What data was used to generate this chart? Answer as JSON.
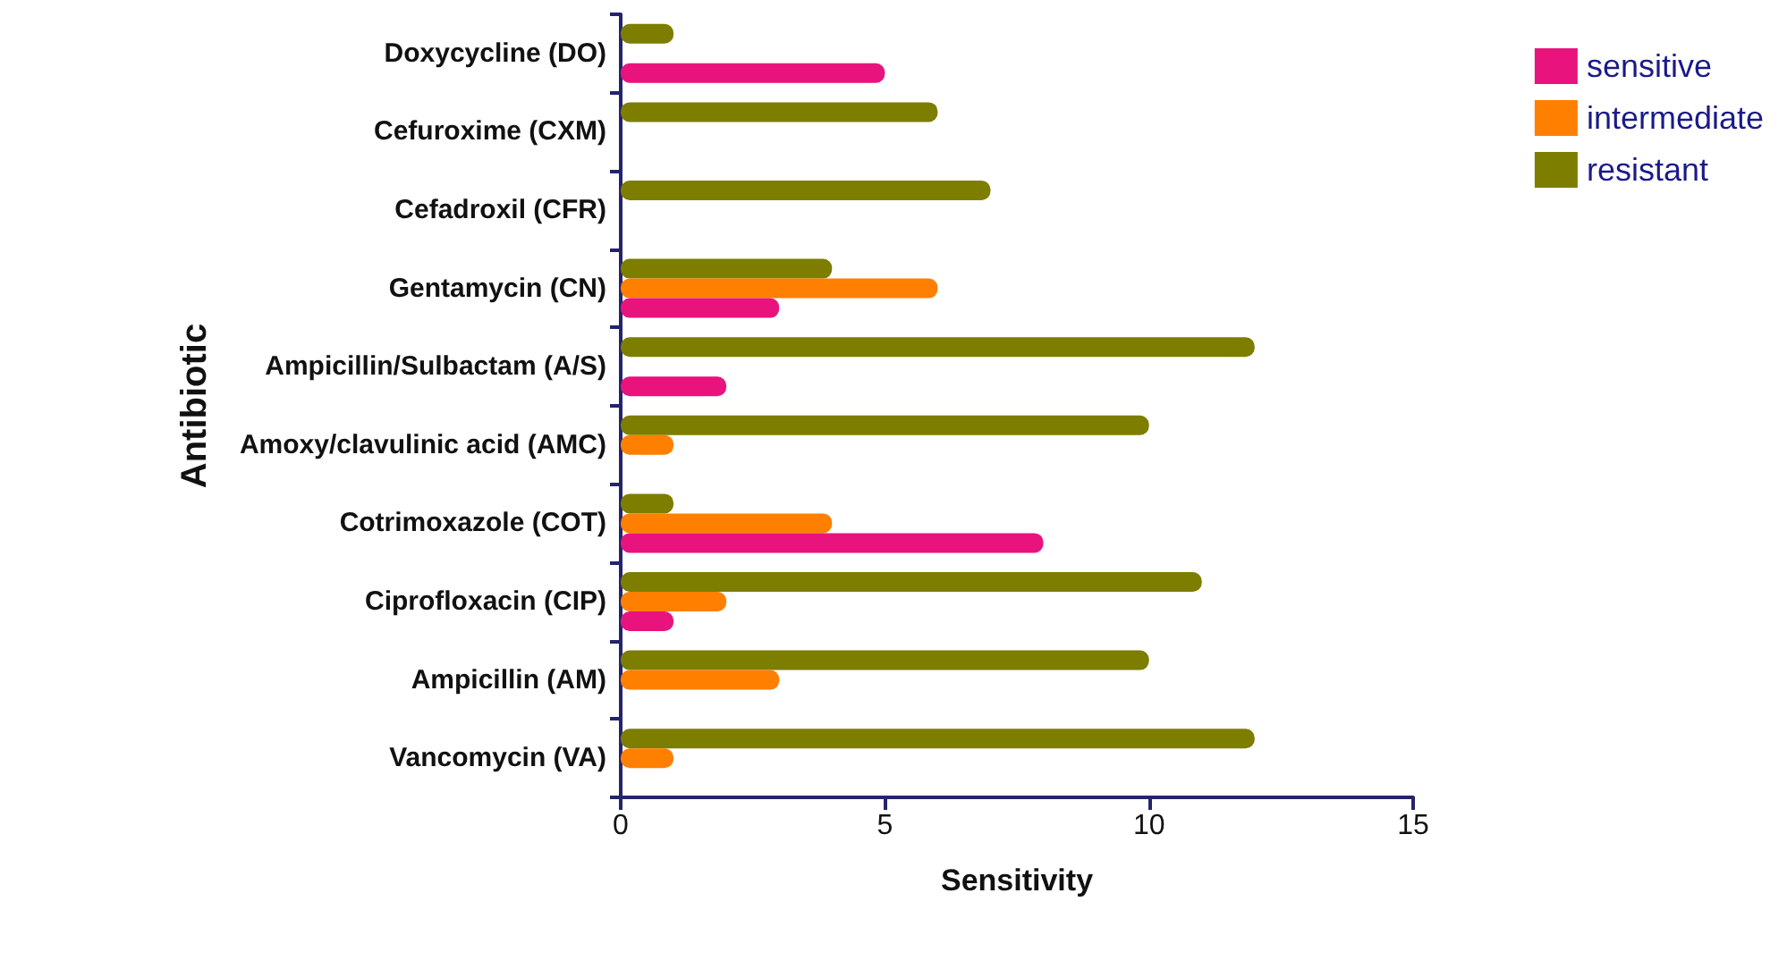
{
  "chart_data": {
    "type": "bar",
    "orientation": "horizontal",
    "xlabel": "Sensitivity",
    "ylabel": "Antibiotic",
    "categories": [
      "Doxycycline (DO)",
      "Cefuroxime (CXM)",
      "Cefadroxil (CFR)",
      "Gentamycin (CN)",
      "Ampicillin/Sulbactam (A/S)",
      "Amoxy/clavulinic acid (AMC)",
      "Cotrimoxazole (COT)",
      "Ciprofloxacin (CIP)",
      "Ampicillin (AM)",
      "Vancomycin (VA)"
    ],
    "series": [
      {
        "name": "sensitive",
        "color": "#e8137c",
        "values": [
          5,
          0,
          0,
          3,
          2,
          0,
          8,
          1,
          0,
          0
        ]
      },
      {
        "name": "intermediate",
        "color": "#ff7f00",
        "values": [
          0,
          0,
          0,
          6,
          0,
          1,
          4,
          2,
          3,
          1
        ]
      },
      {
        "name": "resistant",
        "color": "#7d7d00",
        "values": [
          1,
          6,
          7,
          4,
          12,
          10,
          1,
          11,
          10,
          12
        ]
      }
    ],
    "xlim": [
      0,
      15
    ],
    "xticks": [
      0,
      5,
      10,
      15
    ],
    "grid": false,
    "legend": "top right"
  }
}
